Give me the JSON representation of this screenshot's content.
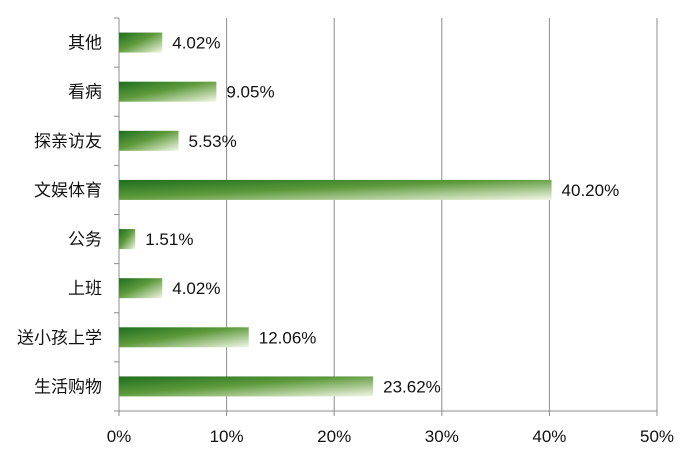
{
  "chart_data": {
    "type": "bar",
    "orientation": "horizontal",
    "categories": [
      "其他",
      "看病",
      "探亲访友",
      "文娱体育",
      "公务",
      "上班",
      "送小孩上学",
      "生活购物"
    ],
    "values": [
      4.02,
      9.05,
      5.53,
      40.2,
      1.51,
      4.02,
      12.06,
      23.62
    ],
    "data_labels": [
      "4.02%",
      "9.05%",
      "5.53%",
      "40.20%",
      "1.51%",
      "4.02%",
      "12.06%",
      "23.62%"
    ],
    "x_ticks": [
      0,
      10,
      20,
      30,
      40,
      50
    ],
    "x_tick_labels": [
      "0%",
      "10%",
      "20%",
      "30%",
      "40%",
      "50%"
    ],
    "xlim": [
      0,
      50
    ],
    "grid": "vertical",
    "legend": "none",
    "title": "",
    "xlabel": "",
    "ylabel": ""
  },
  "colors": {
    "bar_dark": "#1e6e1e",
    "bar_mid": "#5e9a3c",
    "bar_light": "#f3f7e6",
    "grid": "#8c8c8c",
    "axis": "#8c8c8c"
  }
}
